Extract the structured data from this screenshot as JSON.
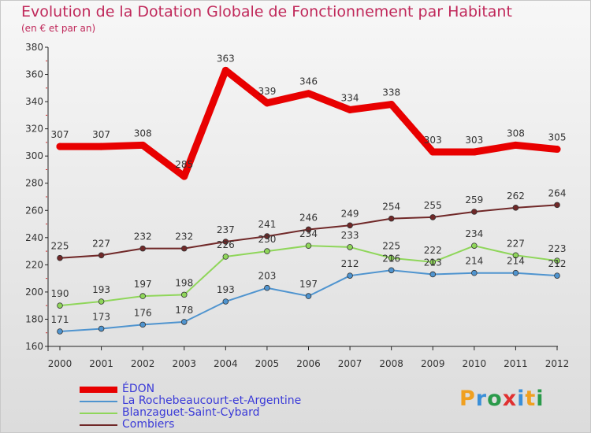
{
  "header": {
    "title": "Evolution de la Dotation Globale de Fonctionnement par Habitant",
    "subtitle": "(en € et par an)"
  },
  "logo": {
    "letters": [
      "P",
      "r",
      "o",
      "x",
      "i",
      "t",
      "i"
    ],
    "colors": [
      "#f0a020",
      "#3a8fd8",
      "#2a9a4a",
      "#e03030",
      "#3a8fd8",
      "#f0a020",
      "#2a9a4a"
    ]
  },
  "chart_data": {
    "type": "line",
    "title": "Evolution de la Dotation Globale de Fonctionnement par Habitant",
    "subtitle": "(en € et par an)",
    "x": [
      "2000",
      "2001",
      "2002",
      "2003",
      "2004",
      "2005",
      "2006",
      "2007",
      "2008",
      "2009",
      "2010",
      "2011",
      "2012"
    ],
    "ylim": [
      160,
      380
    ],
    "yticks": [
      160,
      180,
      200,
      220,
      240,
      260,
      280,
      300,
      320,
      340,
      360,
      380
    ],
    "grid": false,
    "legend": "bottom-left",
    "series": [
      {
        "name": "ÉDON",
        "color": "#e80000",
        "values": [
          307,
          307,
          308,
          285,
          363,
          339,
          346,
          334,
          338,
          303,
          303,
          308,
          305
        ]
      },
      {
        "name": "La Rochebeaucourt-et-Argentine",
        "color": "#4f94cf",
        "values": [
          171,
          173,
          176,
          178,
          193,
          203,
          197,
          212,
          216,
          213,
          214,
          214,
          212
        ]
      },
      {
        "name": "Blanzaguet-Saint-Cybard",
        "color": "#8fd65a",
        "values": [
          190,
          193,
          197,
          198,
          226,
          230,
          234,
          233,
          225,
          222,
          234,
          227,
          223
        ]
      },
      {
        "name": "Combiers",
        "color": "#702828",
        "values": [
          225,
          227,
          232,
          232,
          237,
          241,
          246,
          249,
          254,
          255,
          259,
          262,
          264
        ]
      }
    ]
  }
}
